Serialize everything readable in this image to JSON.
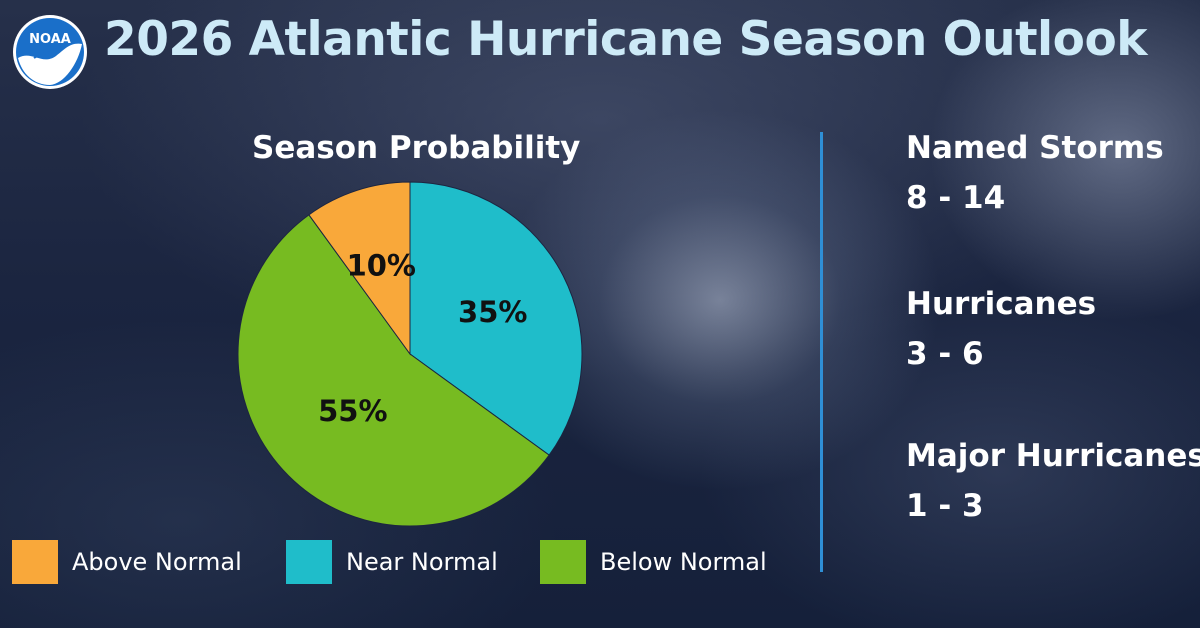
{
  "header": {
    "logo_text": "NOAA",
    "title": "2026 Atlantic Hurricane Season Outlook"
  },
  "chart_data": {
    "type": "pie",
    "title": "Season Probability",
    "categories": [
      "Above Normal",
      "Near Normal",
      "Below Normal"
    ],
    "values": [
      10,
      35,
      55
    ],
    "labels": [
      "10%",
      "35%",
      "55%"
    ],
    "colors": [
      "#f9a83a",
      "#1fbdca",
      "#77bb21"
    ],
    "legend_position": "bottom"
  },
  "legend": {
    "items": [
      {
        "label": "Above Normal",
        "color": "#f9a83a"
      },
      {
        "label": "Near Normal",
        "color": "#1fbdca"
      },
      {
        "label": "Below Normal",
        "color": "#77bb21"
      }
    ]
  },
  "stats": [
    {
      "label": "Named Storms",
      "value": "8 - 14"
    },
    {
      "label": "Hurricanes",
      "value": "3 - 6"
    },
    {
      "label": "Major Hurricanes",
      "value": "1 - 3"
    }
  ],
  "colors": {
    "title": "#cdeaf7",
    "divider": "#2f8fd6",
    "logo_blue": "#1a6fc9"
  }
}
